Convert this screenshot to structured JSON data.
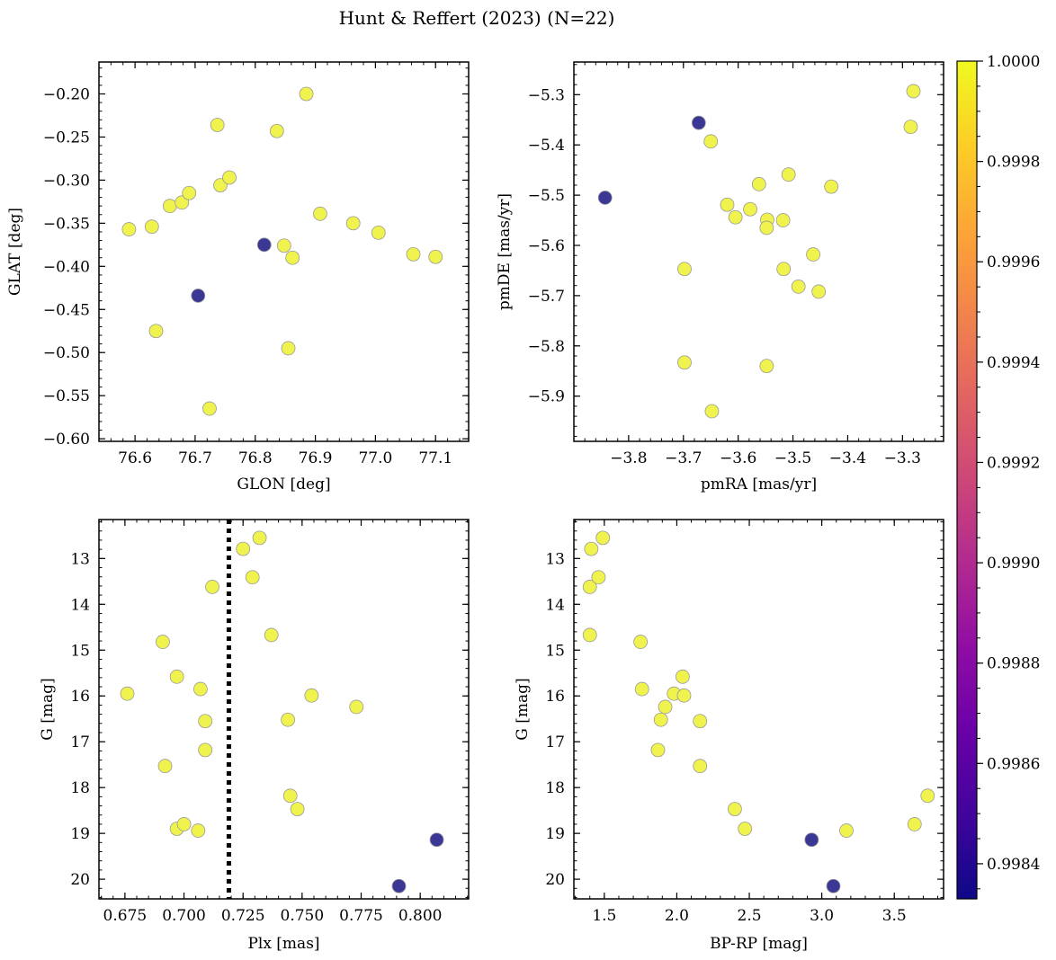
{
  "figure_title": "Hunt & Reffert (2023) (N=22)",
  "colors": {
    "member_high": "#f0f34e",
    "member_low": "#3b3795",
    "marker_edge": "#999999",
    "threshold_line": "#000000"
  },
  "colorbar": {
    "min": 0.99833,
    "max": 1.0,
    "ticks": [
      0.9984,
      0.9986,
      0.9988,
      0.999,
      0.9992,
      0.9994,
      0.9996,
      0.9998,
      1.0
    ],
    "tick_labels": [
      "0.9984",
      "0.9986",
      "0.9988",
      "0.9990",
      "0.9992",
      "0.9994",
      "0.9996",
      "0.9998",
      "1.0000"
    ],
    "colormap": "plasma"
  },
  "stars": {
    "glon": [
      76.59,
      76.628,
      76.658,
      76.678,
      76.69,
      76.737,
      76.742,
      76.757,
      76.836,
      76.885,
      76.908,
      76.963,
      77.005,
      77.063,
      77.1,
      76.848,
      76.862,
      76.635,
      76.855,
      76.724,
      76.815,
      76.705
    ],
    "glat": [
      -0.357,
      -0.354,
      -0.33,
      -0.326,
      -0.315,
      -0.236,
      -0.306,
      -0.297,
      -0.243,
      -0.2,
      -0.339,
      -0.35,
      -0.361,
      -0.386,
      -0.389,
      -0.376,
      -0.39,
      -0.475,
      -0.495,
      -0.565,
      -0.375,
      -0.434
    ],
    "pmra": [
      -3.285,
      -3.28,
      -3.65,
      -3.62,
      -3.605,
      -3.578,
      -3.562,
      -3.547,
      -3.548,
      -3.518,
      -3.508,
      -3.43,
      -3.698,
      -3.517,
      -3.463,
      -3.49,
      -3.453,
      -3.698,
      -3.548,
      -3.648,
      -3.672,
      -3.843
    ],
    "pmde": [
      -5.364,
      -5.293,
      -5.393,
      -5.519,
      -5.544,
      -5.528,
      -5.478,
      -5.549,
      -5.565,
      -5.55,
      -5.459,
      -5.483,
      -5.647,
      -5.647,
      -5.618,
      -5.682,
      -5.692,
      -5.833,
      -5.84,
      -5.93,
      -5.356,
      -5.505
    ],
    "plx": [
      0.676,
      0.691,
      0.692,
      0.697,
      0.697,
      0.7,
      0.706,
      0.707,
      0.709,
      0.709,
      0.712,
      0.725,
      0.729,
      0.732,
      0.737,
      0.744,
      0.745,
      0.748,
      0.754,
      0.773,
      0.807,
      0.791
    ],
    "gmag": [
      15.95,
      14.82,
      17.53,
      15.58,
      18.9,
      18.8,
      18.94,
      15.85,
      16.55,
      17.18,
      13.62,
      12.79,
      13.41,
      12.55,
      14.67,
      16.52,
      18.18,
      18.47,
      15.99,
      16.24,
      19.14,
      20.15
    ],
    "bprp": [
      1.98,
      1.75,
      2.16,
      2.04,
      2.47,
      3.64,
      3.17,
      1.76,
      2.16,
      1.87,
      1.4,
      1.41,
      1.46,
      1.49,
      1.4,
      1.89,
      3.73,
      2.4,
      2.05,
      1.92,
      2.93,
      3.08
    ],
    "prob": [
      1.0,
      1.0,
      1.0,
      1.0,
      1.0,
      1.0,
      1.0,
      1.0,
      1.0,
      1.0,
      1.0,
      1.0,
      1.0,
      1.0,
      1.0,
      1.0,
      1.0,
      1.0,
      1.0,
      1.0,
      0.99833,
      0.99833
    ]
  },
  "chart_data": [
    {
      "type": "scatter",
      "title": "",
      "xlabel": "GLON [deg]",
      "ylabel": "GLAT [deg]",
      "x_field": "glon",
      "y_field": "glat",
      "xlim": [
        76.54,
        77.155
      ],
      "ylim": [
        -0.603,
        -0.163
      ],
      "y_inverted": false,
      "xticks": [
        76.6,
        76.7,
        76.8,
        76.9,
        77.0,
        77.1
      ],
      "xtick_labels": [
        "76.6",
        "76.7",
        "76.8",
        "76.9",
        "77.0",
        "77.1"
      ],
      "yticks": [
        -0.2,
        -0.25,
        -0.3,
        -0.35,
        -0.4,
        -0.45,
        -0.5,
        -0.55,
        -0.6
      ],
      "ytick_labels": [
        "−0.20",
        "−0.25",
        "−0.30",
        "−0.35",
        "−0.40",
        "−0.45",
        "−0.50",
        "−0.55",
        "−0.60"
      ]
    },
    {
      "type": "scatter",
      "title": "",
      "xlabel": "pmRA [mas/yr]",
      "ylabel": "pmDE [mas/yr]",
      "x_field": "pmra",
      "y_field": "pmde",
      "xlim": [
        -3.9,
        -3.225
      ],
      "ylim": [
        -5.99,
        -5.235
      ],
      "y_inverted": false,
      "xticks": [
        -3.8,
        -3.7,
        -3.6,
        -3.5,
        -3.4,
        -3.3
      ],
      "xtick_labels": [
        "−3.8",
        "−3.7",
        "−3.6",
        "−3.5",
        "−3.4",
        "−3.3"
      ],
      "yticks": [
        -5.3,
        -5.4,
        -5.5,
        -5.6,
        -5.7,
        -5.8,
        -5.9
      ],
      "ytick_labels": [
        "−5.3",
        "−5.4",
        "−5.5",
        "−5.6",
        "−5.7",
        "−5.8",
        "−5.9"
      ]
    },
    {
      "type": "scatter",
      "title": "",
      "xlabel": "Plx [mas]",
      "ylabel": "G [mag]",
      "x_field": "plx",
      "y_field": "gmag",
      "xlim": [
        0.664,
        0.8205
      ],
      "ylim": [
        12.15,
        20.43
      ],
      "y_inverted": true,
      "vline": 0.719,
      "xticks": [
        0.675,
        0.7,
        0.725,
        0.75,
        0.775,
        0.8
      ],
      "xtick_labels": [
        "0.675",
        "0.700",
        "0.725",
        "0.750",
        "0.775",
        "0.800"
      ],
      "yticks": [
        13,
        14,
        15,
        16,
        17,
        18,
        19,
        20
      ],
      "ytick_labels": [
        "13",
        "14",
        "15",
        "16",
        "17",
        "18",
        "19",
        "20"
      ]
    },
    {
      "type": "scatter",
      "title": "",
      "xlabel": "BP-RP [mag]",
      "ylabel": "G [mag]",
      "x_field": "bprp",
      "y_field": "gmag",
      "xlim": [
        1.29,
        3.84
      ],
      "ylim": [
        12.15,
        20.43
      ],
      "y_inverted": true,
      "xticks": [
        1.5,
        2.0,
        2.5,
        3.0,
        3.5
      ],
      "xtick_labels": [
        "1.5",
        "2.0",
        "2.5",
        "3.0",
        "3.5"
      ],
      "yticks": [
        13,
        14,
        15,
        16,
        17,
        18,
        19,
        20
      ],
      "ytick_labels": [
        "13",
        "14",
        "15",
        "16",
        "17",
        "18",
        "19",
        "20"
      ]
    }
  ]
}
